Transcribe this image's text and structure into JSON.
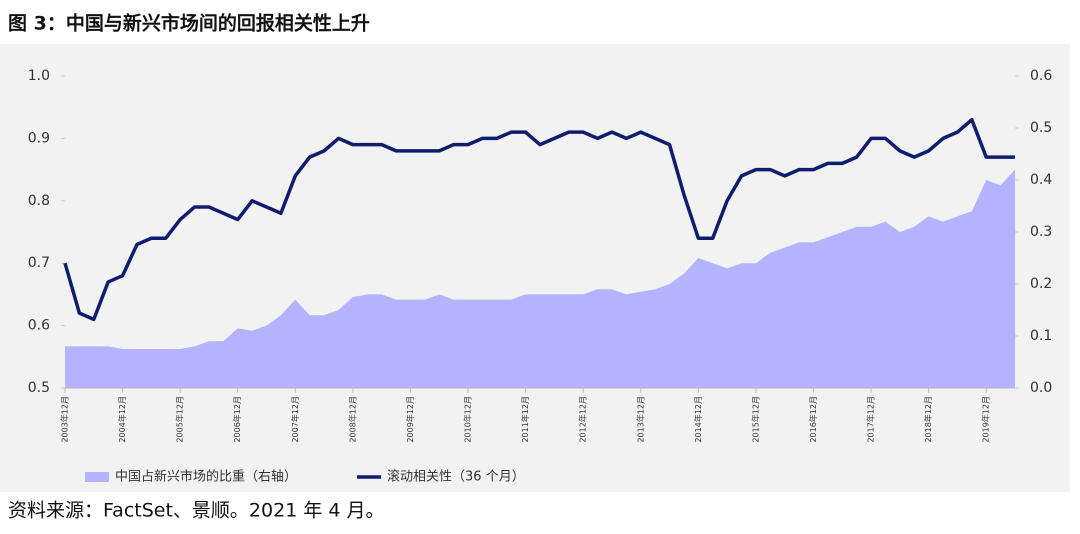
{
  "chart_data": {
    "type": "line",
    "title": "图 3：中国与新兴市场间的回报相关性上升",
    "source": "资料来源：FactSet、景顺。2021 年 4 月。",
    "categories": [
      "2003年12月",
      null,
      null,
      null,
      "2004年12月",
      null,
      null,
      null,
      "2005年12月",
      null,
      null,
      null,
      "2006年12月",
      null,
      null,
      null,
      "2007年12月",
      null,
      null,
      null,
      "2008年12月",
      null,
      null,
      null,
      "2009年12月",
      null,
      null,
      null,
      "2010年12月",
      null,
      null,
      null,
      "2011年12月",
      null,
      null,
      null,
      "2012年12月",
      null,
      null,
      null,
      "2013年12月",
      null,
      null,
      null,
      "2014年12月",
      null,
      null,
      null,
      "2015年12月",
      null,
      null,
      null,
      "2016年12月",
      null,
      null,
      null,
      "2017年12月",
      null,
      null,
      null,
      "2018年12月",
      null,
      null,
      null,
      "2019年12月",
      null,
      null
    ],
    "series": [
      {
        "name": "中国占新兴市场的比重（右轴）",
        "type": "area",
        "axis": "y2",
        "color": "#b3b3ff",
        "values": [
          0.08,
          0.08,
          0.08,
          0.08,
          0.075,
          0.075,
          0.075,
          0.075,
          0.075,
          0.08,
          0.09,
          0.09,
          0.115,
          0.11,
          0.12,
          0.14,
          0.17,
          0.14,
          0.14,
          0.15,
          0.175,
          0.18,
          0.18,
          0.17,
          0.17,
          0.17,
          0.18,
          0.17,
          0.17,
          0.17,
          0.17,
          0.17,
          0.18,
          0.18,
          0.18,
          0.18,
          0.18,
          0.19,
          0.19,
          0.18,
          0.185,
          0.19,
          0.2,
          0.22,
          0.25,
          0.24,
          0.23,
          0.24,
          0.24,
          0.26,
          0.27,
          0.28,
          0.28,
          0.29,
          0.3,
          0.31,
          0.31,
          0.32,
          0.3,
          0.31,
          0.33,
          0.32,
          0.33,
          0.34,
          0.4,
          0.39,
          0.42
        ]
      },
      {
        "name": "滚动相关性（36 个月）",
        "type": "line",
        "color": "#0f1d6e",
        "values": [
          0.7,
          0.62,
          0.61,
          0.67,
          0.68,
          0.73,
          0.74,
          0.74,
          0.77,
          0.79,
          0.79,
          0.78,
          0.77,
          0.8,
          0.79,
          0.78,
          0.84,
          0.87,
          0.88,
          0.9,
          0.89,
          0.89,
          0.89,
          0.88,
          0.88,
          0.88,
          0.88,
          0.89,
          0.89,
          0.9,
          0.9,
          0.91,
          0.91,
          0.89,
          0.9,
          0.91,
          0.91,
          0.9,
          0.91,
          0.9,
          0.91,
          0.9,
          0.89,
          0.81,
          0.74,
          0.74,
          0.8,
          0.84,
          0.85,
          0.85,
          0.84,
          0.85,
          0.85,
          0.86,
          0.86,
          0.87,
          0.9,
          0.9,
          0.88,
          0.87,
          0.88,
          0.9,
          0.91,
          0.93,
          0.87,
          0.87,
          0.87
        ]
      }
    ],
    "ylim": [
      0.5,
      1.0
    ],
    "yticks": [
      0.5,
      0.6,
      0.7,
      0.8,
      0.9,
      {
        "value": 1.0,
        "label": "1.0"
      }
    ],
    "y2lim": [
      0,
      0.6
    ],
    "y2ticks": [
      {
        "value": 0,
        "label": "0.0"
      },
      0.1,
      0.2,
      0.3,
      0.4,
      0.5,
      0.6
    ],
    "legend": "bottom"
  }
}
